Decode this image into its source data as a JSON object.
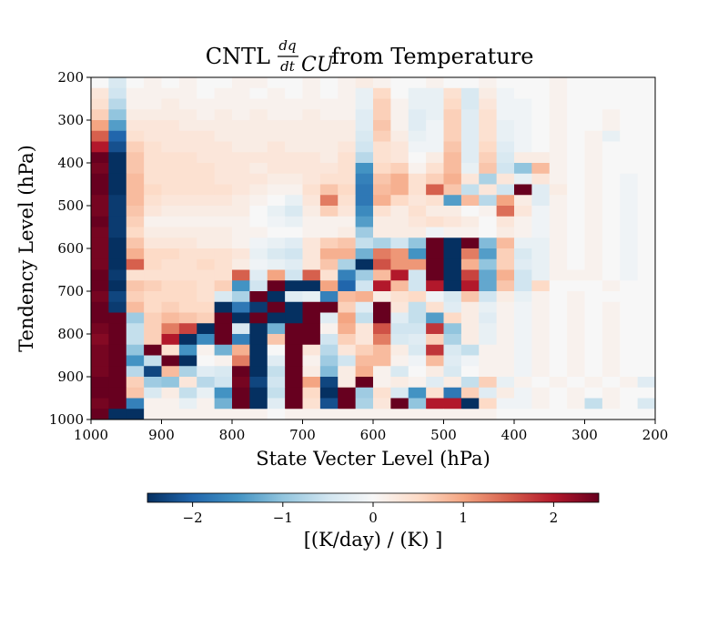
{
  "chart_data": {
    "type": "heatmap",
    "title": {
      "prefix": "CNTL",
      "frac_num": "dq",
      "frac_den": "dt",
      "sub": "CU",
      "suffix": "from Temperature"
    },
    "xlabel": "State Vecter Level (hPa)",
    "ylabel": "Tendency Level (hPa)",
    "x_range": [
      1000,
      200
    ],
    "y_range": [
      200,
      1000
    ],
    "x_ticks": [
      "1000",
      "900",
      "800",
      "700",
      "600",
      "500",
      "400",
      "300",
      "200"
    ],
    "y_ticks": [
      "200",
      "300",
      "400",
      "500",
      "600",
      "700",
      "800",
      "900",
      "1000"
    ],
    "colorbar": {
      "label": "[(K/day) / (K) ]",
      "range": [
        -2.5,
        2.5
      ],
      "ticks": [
        "−2",
        "−1",
        "0",
        "1",
        "2"
      ],
      "tick_values": [
        -2,
        -1,
        0,
        1,
        2
      ],
      "colormap": "RdBu_r",
      "colors": [
        "#053061",
        "#2166ac",
        "#4393c3",
        "#92c5de",
        "#d1e5f0",
        "#f7f7f7",
        "#fddbc7",
        "#f4a582",
        "#d6604d",
        "#b2182b",
        "#67001f"
      ]
    },
    "grid_size": 32,
    "cells": [
      [
        0.0,
        -0.4,
        0.0,
        0.1,
        0.0,
        0.1,
        0.0,
        0.0,
        0.1,
        0.1,
        0.0,
        0.0,
        0.1,
        0.0,
        0.1,
        0.2,
        0.1,
        0.0,
        0.0,
        0.1,
        0.0,
        0.0,
        0.1,
        0.0,
        0.0,
        0.0,
        0.1,
        0.0,
        0.0,
        0.0,
        0.0,
        0.0
      ],
      [
        0.3,
        -0.5,
        0.1,
        0.1,
        0.1,
        0.1,
        0.0,
        0.1,
        0.1,
        0.0,
        0.1,
        0.0,
        0.1,
        0.0,
        0.1,
        -0.2,
        0.5,
        0.0,
        -0.2,
        -0.2,
        0.4,
        -0.4,
        0.2,
        -0.1,
        0.0,
        0.0,
        0.1,
        0.0,
        0.0,
        0.0,
        0.0,
        0.0
      ],
      [
        0.4,
        -0.7,
        0.1,
        0.1,
        0.2,
        0.1,
        0.1,
        0.1,
        0.1,
        0.1,
        0.1,
        0.1,
        0.1,
        0.1,
        0.1,
        -0.2,
        0.6,
        0.1,
        -0.2,
        -0.2,
        0.5,
        -0.4,
        0.3,
        -0.1,
        -0.1,
        0.0,
        0.1,
        0.0,
        0.0,
        0.0,
        0.0,
        0.0
      ],
      [
        0.6,
        -1.0,
        0.2,
        0.2,
        0.2,
        0.2,
        0.1,
        0.2,
        0.1,
        0.2,
        0.1,
        0.1,
        0.2,
        0.1,
        0.1,
        -0.3,
        0.6,
        0.1,
        -0.3,
        -0.2,
        0.6,
        -0.3,
        0.4,
        -0.1,
        -0.1,
        0.0,
        0.1,
        0.0,
        0.0,
        0.1,
        0.0,
        0.0
      ],
      [
        1.0,
        -1.4,
        0.3,
        0.3,
        0.3,
        0.2,
        0.2,
        0.2,
        0.2,
        0.2,
        0.2,
        0.2,
        0.2,
        0.2,
        0.2,
        -0.3,
        0.7,
        0.1,
        -0.3,
        -0.1,
        0.6,
        -0.3,
        0.4,
        -0.2,
        -0.1,
        0.0,
        0.1,
        0.0,
        0.0,
        0.1,
        0.0,
        0.0
      ],
      [
        1.5,
        -2.0,
        0.4,
        0.3,
        0.3,
        0.3,
        0.3,
        0.2,
        0.2,
        0.2,
        0.2,
        0.2,
        0.2,
        0.2,
        0.2,
        -0.4,
        0.6,
        0.2,
        -0.2,
        -0.1,
        0.6,
        -0.3,
        0.4,
        -0.2,
        -0.1,
        0.0,
        0.1,
        0.0,
        0.1,
        -0.2,
        0.0,
        0.0
      ],
      [
        2.0,
        -2.2,
        0.6,
        0.4,
        0.3,
        0.3,
        0.3,
        0.3,
        0.2,
        0.2,
        0.3,
        0.2,
        0.2,
        0.2,
        0.3,
        -0.5,
        0.4,
        0.3,
        -0.1,
        -0.1,
        0.7,
        -0.3,
        0.5,
        -0.3,
        -0.1,
        0.0,
        0.1,
        0.0,
        0.1,
        0.0,
        0.0,
        0.0
      ],
      [
        2.5,
        -2.5,
        0.7,
        0.4,
        0.4,
        0.4,
        0.3,
        0.3,
        0.3,
        0.3,
        0.3,
        0.3,
        0.3,
        0.2,
        0.4,
        -0.7,
        0.4,
        0.3,
        0.0,
        0.2,
        0.8,
        -0.3,
        0.6,
        -0.4,
        0.2,
        0.2,
        0.1,
        0.0,
        0.1,
        0.0,
        0.0,
        0.0
      ],
      [
        2.4,
        -2.5,
        0.7,
        0.4,
        0.4,
        0.4,
        0.4,
        0.3,
        0.3,
        0.2,
        0.3,
        0.3,
        0.3,
        0.3,
        0.4,
        -1.5,
        0.5,
        0.6,
        0.1,
        0.4,
        0.8,
        -0.2,
        0.7,
        -0.5,
        -1.0,
        0.8,
        0.1,
        0.0,
        0.1,
        0.0,
        0.0,
        0.0
      ],
      [
        2.6,
        -2.5,
        0.8,
        0.4,
        0.4,
        0.4,
        0.4,
        0.3,
        0.3,
        0.3,
        0.2,
        0.2,
        0.3,
        0.4,
        0.4,
        -1.7,
        0.7,
        0.9,
        0.4,
        0.6,
        0.9,
        0.3,
        -0.8,
        0.3,
        -0.2,
        0.3,
        0.1,
        0.0,
        0.1,
        0.0,
        -0.1,
        0.0
      ],
      [
        2.6,
        -2.5,
        0.8,
        0.5,
        0.4,
        0.4,
        0.4,
        0.4,
        0.3,
        0.2,
        0.1,
        0.1,
        0.4,
        0.7,
        0.5,
        -1.8,
        0.8,
        0.9,
        0.4,
        1.5,
        0.7,
        -0.6,
        0.3,
        -0.5,
        2.5,
        -0.3,
        0.2,
        0.0,
        0.1,
        0.0,
        -0.1,
        0.0
      ],
      [
        2.4,
        -2.4,
        0.8,
        0.4,
        0.3,
        0.3,
        0.3,
        0.3,
        0.2,
        0.1,
        0.0,
        -0.2,
        0.3,
        1.3,
        0.4,
        -1.8,
        0.9,
        0.5,
        0.3,
        0.4,
        -1.4,
        0.8,
        -0.7,
        1.0,
        0.2,
        -0.3,
        0.1,
        0.0,
        0.1,
        0.0,
        -0.1,
        0.0
      ],
      [
        2.4,
        -2.4,
        0.7,
        0.3,
        0.2,
        0.2,
        0.2,
        0.2,
        0.2,
        0.0,
        -0.2,
        -0.4,
        0.2,
        0.6,
        0.3,
        -1.6,
        0.4,
        0.2,
        0.4,
        0.2,
        0.2,
        0.0,
        0.1,
        1.4,
        0.3,
        -0.1,
        0.1,
        0.0,
        0.1,
        0.0,
        -0.1,
        0.0
      ],
      [
        2.5,
        -2.4,
        0.6,
        0.1,
        0.1,
        0.1,
        0.1,
        0.1,
        0.1,
        0.0,
        -0.1,
        -0.2,
        0.1,
        0.1,
        0.1,
        -1.4,
        0.2,
        0.2,
        0.3,
        0.4,
        0.3,
        0.2,
        0.0,
        0.3,
        0.1,
        -0.1,
        0.1,
        0.0,
        0.1,
        0.0,
        -0.1,
        0.0
      ],
      [
        2.4,
        -2.4,
        0.5,
        0.2,
        0.2,
        0.2,
        0.2,
        0.2,
        0.1,
        0.1,
        0.0,
        0.0,
        0.1,
        0.1,
        0.2,
        -0.9,
        0.2,
        0.2,
        0.2,
        -0.1,
        0.1,
        0.1,
        0.0,
        0.2,
        0.1,
        -0.1,
        0.1,
        0.0,
        0.1,
        0.0,
        -0.1,
        0.0
      ],
      [
        2.4,
        -2.5,
        0.7,
        0.3,
        0.3,
        0.3,
        0.2,
        0.2,
        0.1,
        -0.1,
        -0.2,
        -0.3,
        0.3,
        0.6,
        0.7,
        -0.6,
        -0.8,
        -0.5,
        -1.0,
        2.5,
        -2.5,
        2.5,
        -1.1,
        0.8,
        -0.2,
        -0.2,
        0.1,
        0.0,
        0.1,
        0.0,
        -0.1,
        0.0
      ],
      [
        2.4,
        -2.5,
        0.9,
        0.5,
        0.5,
        0.4,
        0.4,
        0.4,
        0.3,
        -0.2,
        -0.4,
        -0.5,
        0.3,
        0.9,
        0.9,
        -1.2,
        1.3,
        1.1,
        -1.5,
        2.5,
        -2.5,
        1.3,
        -1.4,
        0.6,
        -0.4,
        -0.2,
        0.1,
        0.0,
        0.1,
        0.0,
        -0.1,
        0.0
      ],
      [
        2.4,
        -2.5,
        1.5,
        0.5,
        0.4,
        0.4,
        0.5,
        0.4,
        0.2,
        -0.1,
        -0.2,
        -0.3,
        0.3,
        0.7,
        -0.8,
        -2.5,
        1.6,
        1.1,
        1.1,
        2.5,
        -2.5,
        0.9,
        -1.0,
        0.6,
        -0.3,
        -0.2,
        0.1,
        0.0,
        0.1,
        0.0,
        -0.1,
        0.0
      ],
      [
        2.5,
        -2.4,
        0.4,
        0.4,
        0.4,
        0.4,
        0.4,
        0.4,
        1.5,
        -0.3,
        1.0,
        -0.5,
        1.5,
        0.4,
        -1.7,
        -0.9,
        0.8,
        2.0,
        -0.5,
        2.5,
        -2.5,
        1.7,
        -1.3,
        0.9,
        -0.5,
        -0.2,
        0.1,
        0.1,
        0.1,
        0.0,
        -0.1,
        0.0
      ],
      [
        2.6,
        -2.5,
        0.7,
        0.6,
        0.5,
        0.5,
        0.4,
        0.6,
        -1.5,
        -0.5,
        2.5,
        -2.5,
        -2.5,
        1.0,
        -2.0,
        -0.5,
        2.0,
        0.8,
        -0.5,
        2.0,
        -2.5,
        2.0,
        -1.3,
        0.7,
        -0.5,
        0.5,
        0.0,
        0.0,
        0.0,
        0.1,
        0.0,
        0.0
      ],
      [
        2.4,
        -2.3,
        0.6,
        0.5,
        0.5,
        0.5,
        0.4,
        -0.4,
        -0.8,
        2.5,
        -2.5,
        -0.3,
        -0.2,
        -1.7,
        0.8,
        0.9,
        0.2,
        0.4,
        0.5,
        -0.1,
        -0.4,
        0.7,
        -0.5,
        0.2,
        -0.2,
        0.1,
        0.0,
        0.1,
        0.0,
        0.0,
        0.0,
        0.0
      ],
      [
        2.5,
        -2.4,
        0.8,
        0.5,
        0.6,
        0.5,
        0.5,
        -2.5,
        -1.8,
        -2.4,
        2.5,
        -2.5,
        2.5,
        2.5,
        0.6,
        -0.3,
        2.5,
        0.3,
        -0.6,
        0.4,
        -0.3,
        0.2,
        -0.2,
        0.1,
        -0.1,
        0.1,
        0.0,
        0.1,
        0.0,
        0.1,
        0.0,
        0.0
      ],
      [
        2.5,
        2.5,
        -0.9,
        0.6,
        0.8,
        0.7,
        0.6,
        2.5,
        -2.5,
        2.5,
        -2.5,
        -2.5,
        2.5,
        -0.3,
        1.0,
        -0.6,
        2.5,
        -0.3,
        -0.6,
        -1.4,
        0.5,
        0.2,
        -0.3,
        0.1,
        -0.1,
        0.1,
        0.0,
        0.1,
        0.0,
        0.1,
        0.0,
        0.0
      ],
      [
        2.4,
        2.5,
        -0.6,
        0.6,
        1.3,
        1.7,
        -2.5,
        2.5,
        -0.4,
        -2.5,
        -1.2,
        2.5,
        2.5,
        0.1,
        0.9,
        0.3,
        1.6,
        -0.5,
        -0.5,
        1.8,
        -1.0,
        0.2,
        -0.2,
        0.1,
        -0.1,
        0.1,
        0.0,
        0.1,
        0.0,
        0.1,
        0.0,
        0.0
      ],
      [
        2.3,
        2.5,
        -0.6,
        0.6,
        2.0,
        -2.5,
        -1.6,
        2.5,
        -1.7,
        -2.5,
        0.7,
        2.5,
        2.5,
        -0.5,
        0.6,
        0.3,
        1.3,
        -0.4,
        -0.3,
        0.6,
        -0.8,
        0.2,
        -0.2,
        0.1,
        -0.1,
        0.1,
        0.0,
        0.1,
        0.0,
        0.1,
        0.0,
        0.0
      ],
      [
        2.4,
        2.5,
        -1.0,
        2.5,
        0.4,
        -1.5,
        0.1,
        -1.2,
        0.9,
        -2.5,
        0.0,
        2.5,
        0.3,
        -0.7,
        0.3,
        0.6,
        0.8,
        0.2,
        -0.4,
        1.8,
        -0.4,
        -0.6,
        0.1,
        0.1,
        -0.1,
        0.1,
        0.0,
        0.1,
        0.0,
        0.1,
        0.0,
        0.0
      ],
      [
        2.4,
        2.5,
        -1.5,
        -0.6,
        2.5,
        -2.5,
        0.0,
        0.1,
        1.3,
        -2.5,
        -0.3,
        2.5,
        0.1,
        -0.9,
        -0.5,
        0.8,
        0.8,
        0.1,
        -0.1,
        0.8,
        -0.3,
        -0.1,
        0.1,
        0.1,
        -0.1,
        0.1,
        0.0,
        0.1,
        0.0,
        0.1,
        0.0,
        0.0
      ],
      [
        2.4,
        2.5,
        -0.7,
        -2.3,
        0.8,
        -0.8,
        -0.3,
        -0.4,
        2.5,
        -2.5,
        -0.6,
        2.5,
        0.2,
        -1.1,
        0.2,
        0.9,
        0.1,
        -0.4,
        0.0,
        0.2,
        -0.4,
        0.0,
        0.1,
        0.1,
        -0.1,
        0.1,
        0.0,
        0.1,
        0.0,
        0.1,
        0.0,
        0.0
      ],
      [
        2.6,
        2.5,
        0.6,
        -0.9,
        -1.0,
        0.3,
        -0.7,
        -0.5,
        2.4,
        -2.3,
        -0.5,
        2.5,
        1.0,
        -2.3,
        0.2,
        2.5,
        0.1,
        0.2,
        0.1,
        -0.3,
        0.2,
        -0.6,
        0.6,
        -0.2,
        0.1,
        0.0,
        0.1,
        0.0,
        0.1,
        0.0,
        0.1,
        -0.3
      ],
      [
        2.5,
        2.5,
        0.7,
        -0.4,
        0.2,
        -0.6,
        -0.2,
        -1.5,
        2.5,
        -2.5,
        -0.6,
        2.5,
        0.5,
        -2.5,
        2.5,
        -0.9,
        0.4,
        -0.4,
        -1.5,
        0.4,
        -1.8,
        0.6,
        -0.3,
        0.2,
        -0.1,
        0.1,
        0.0,
        0.1,
        0.0,
        0.1,
        0.0,
        0.0
      ],
      [
        2.4,
        2.5,
        -1.7,
        0.1,
        0.1,
        -0.2,
        0.1,
        -1.2,
        2.5,
        -2.5,
        -0.3,
        2.5,
        0.4,
        -2.2,
        2.5,
        -0.8,
        0.3,
        2.5,
        -1.0,
        2.0,
        2.0,
        -2.5,
        0.5,
        -0.1,
        -0.1,
        0.1,
        0.0,
        0.1,
        -0.6,
        0.1,
        0.0,
        -0.4
      ],
      [
        2.5,
        -2.5,
        -2.5,
        0.1,
        0.1,
        0.1,
        0.1,
        0.1,
        0.1,
        0.1,
        0.0,
        0.1,
        0.1,
        0.1,
        0.1,
        0.1,
        0.1,
        0.1,
        0.1,
        0.1,
        0.1,
        0.1,
        0.1,
        0.0,
        0.0,
        0.0,
        0.0,
        0.0,
        0.0,
        0.0,
        0.0,
        0.0
      ]
    ]
  }
}
